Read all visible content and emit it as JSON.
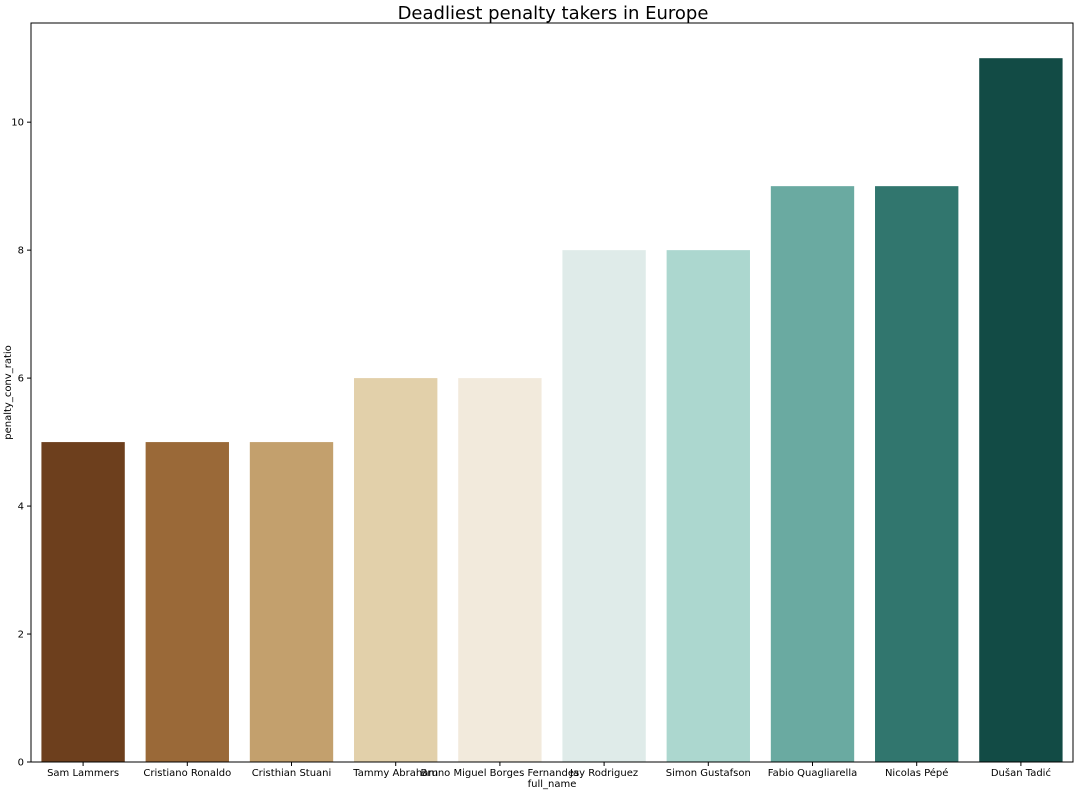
{
  "chart_data": {
    "type": "bar",
    "title": "Deadliest penalty takers in Europe",
    "xlabel": "full_name",
    "ylabel": "penalty_conv_ratio",
    "categories": [
      "Sam Lammers",
      "Cristiano Ronaldo",
      "Cristhian Stuani",
      "Tammy Abraham",
      "Bruno Miguel Borges Fernandes",
      "Jay Rodriguez",
      "Simon Gustafson",
      "Fabio Quagliarella",
      "Nicolas Pépé",
      "Dušan Tadić"
    ],
    "values": [
      5,
      5,
      5,
      6,
      6,
      8,
      8,
      9,
      9,
      11
    ],
    "colors": [
      "#6d3f1d",
      "#9a6938",
      "#c3a06d",
      "#e2d0aa",
      "#f2eadc",
      "#dfebe9",
      "#acd7cf",
      "#6aaaa1",
      "#31766e",
      "#124b45"
    ],
    "ylim": [
      0,
      11.55
    ],
    "yticks": [
      0,
      2,
      4,
      6,
      8,
      10
    ],
    "grid": false,
    "legend": "none"
  }
}
